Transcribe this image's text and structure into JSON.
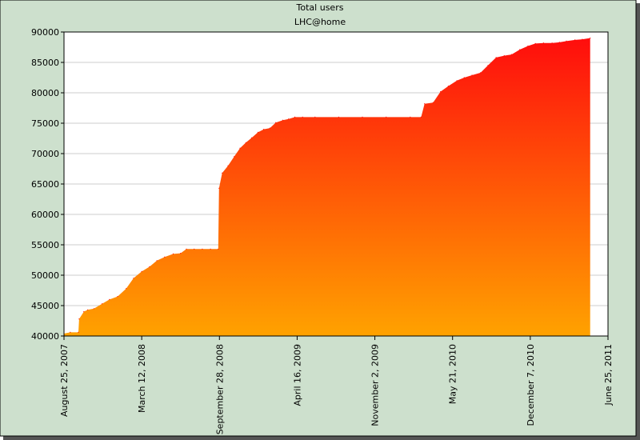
{
  "chart_data": {
    "type": "area",
    "title": "Total users",
    "subtitle": "LHC@home",
    "xlabel": "",
    "ylabel": "",
    "ylim": [
      40000,
      90000
    ],
    "yticks": [
      40000,
      45000,
      50000,
      55000,
      60000,
      65000,
      70000,
      75000,
      80000,
      85000,
      90000
    ],
    "xlim": [
      "2007-08-25",
      "2011-06-25"
    ],
    "xticks": [
      "August 25, 2007",
      "March 12, 2008",
      "September 28, 2008",
      "April 16, 2009",
      "November 2, 2009",
      "May 21, 2010",
      "December 7, 2010",
      "June 25, 2011"
    ],
    "grid": true,
    "legend": "none",
    "colors": {
      "background": "#cde0cd",
      "plot_background": "#ffffff",
      "grid": "#cccccc",
      "gradient_top": "#ff0d0d",
      "gradient_bottom": "#ffa200"
    },
    "series": [
      {
        "x": [
          "2007-08-25",
          "2007-09-10",
          "2007-10-01",
          "2007-10-03",
          "2007-10-15",
          "2007-10-25",
          "2007-11-10",
          "2007-12-01",
          "2007-12-20",
          "2008-01-10",
          "2008-02-01",
          "2008-02-20",
          "2008-03-12",
          "2008-04-01",
          "2008-04-20",
          "2008-05-10",
          "2008-06-01",
          "2008-06-20",
          "2008-07-05",
          "2008-07-25",
          "2008-08-15",
          "2008-09-05",
          "2008-09-25",
          "2008-09-27",
          "2008-10-05",
          "2008-10-20",
          "2008-11-05",
          "2008-11-20",
          "2008-12-05",
          "2008-12-20",
          "2009-01-05",
          "2009-01-20",
          "2009-02-05",
          "2009-02-20",
          "2009-03-10",
          "2009-03-25",
          "2009-04-10",
          "2009-04-30",
          "2009-06-01",
          "2009-08-01",
          "2009-10-01",
          "2009-12-01",
          "2010-02-01",
          "2010-03-01",
          "2010-03-10",
          "2010-04-01",
          "2010-04-20",
          "2010-05-10",
          "2010-06-01",
          "2010-06-20",
          "2010-07-10",
          "2010-08-01",
          "2010-08-20",
          "2010-09-10",
          "2010-10-01",
          "2010-10-20",
          "2010-11-10",
          "2010-12-01",
          "2010-12-20",
          "2011-01-10",
          "2011-02-01",
          "2011-02-20",
          "2011-03-10",
          "2011-04-01",
          "2011-04-20",
          "2011-05-10"
        ],
        "values": [
          40400,
          40600,
          40600,
          42800,
          44000,
          44300,
          44500,
          45300,
          46000,
          46500,
          47800,
          49500,
          50600,
          51400,
          52400,
          53000,
          53500,
          53600,
          54300,
          54300,
          54300,
          54300,
          54300,
          64300,
          66800,
          68000,
          69500,
          70900,
          71800,
          72600,
          73500,
          74000,
          74200,
          75100,
          75500,
          75700,
          76000,
          76000,
          76000,
          76000,
          76000,
          76000,
          76000,
          76000,
          78200,
          78400,
          80200,
          81100,
          82000,
          82500,
          82900,
          83300,
          84500,
          85800,
          86100,
          86300,
          87100,
          87700,
          88100,
          88200,
          88200,
          88300,
          88500,
          88700,
          88800,
          89000
        ]
      }
    ]
  }
}
